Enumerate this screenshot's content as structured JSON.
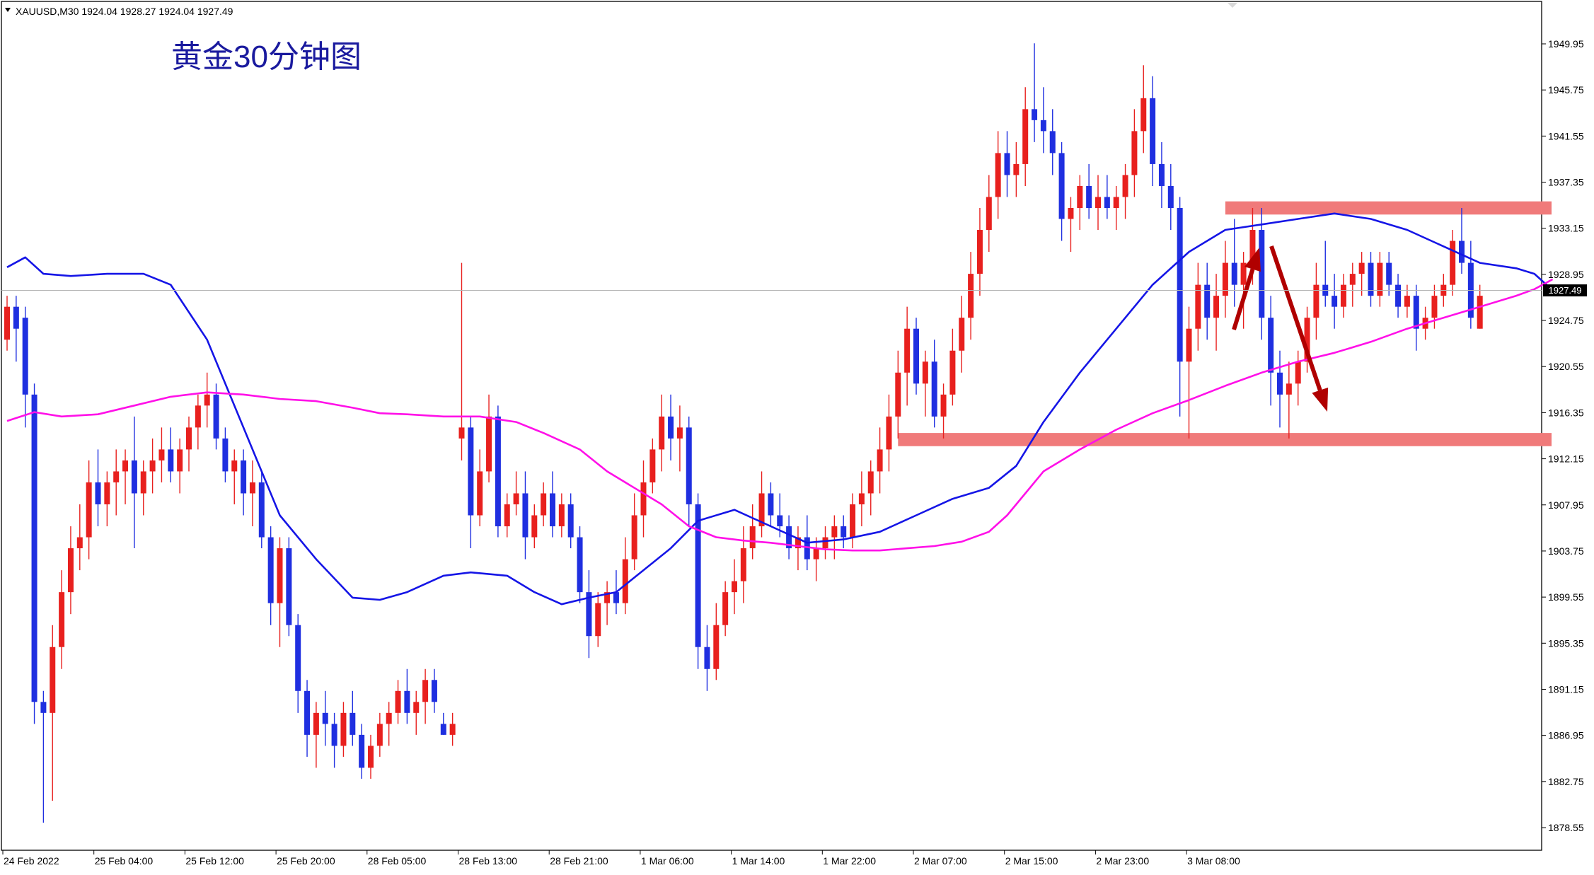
{
  "window": {
    "symbol_info": "XAUUSD,M30  1924.04 1928.27 1924.04 1927.49",
    "title": "黄金30分钟图",
    "current_price_label": "1927.49"
  },
  "colors": {
    "bull": "#e8201e",
    "bear": "#1f2fe0",
    "ma_fast": "#1515e6",
    "ma_slow": "#ff10e8",
    "zone": "#f07a7a",
    "arrow": "#b00000",
    "axis_text": "#000000"
  },
  "icons": {
    "dropdown": "triangle-down-icon"
  },
  "chart_data": {
    "type": "candlestick",
    "title": "黄金30分钟图",
    "ylim": [
      1876.8,
      1951.9
    ],
    "yticks": [
      1949.95,
      1945.75,
      1941.55,
      1937.35,
      1933.15,
      1928.95,
      1924.75,
      1920.55,
      1916.35,
      1912.15,
      1907.95,
      1903.75,
      1899.55,
      1895.35,
      1891.15,
      1886.95,
      1882.75,
      1878.55
    ],
    "xticks": [
      "24 Feb 2022",
      "25 Feb 04:00",
      "25 Feb 12:00",
      "25 Feb 20:00",
      "28 Feb 05:00",
      "28 Feb 13:00",
      "28 Feb 21:00",
      "1 Mar 06:00",
      "1 Mar 14:00",
      "1 Mar 22:00",
      "2 Mar 07:00",
      "2 Mar 15:00",
      "2 Mar 23:00",
      "3 Mar 08:00"
    ],
    "last_price": 1927.49,
    "zones": [
      {
        "name": "resistance",
        "from": 1934.4,
        "to": 1935.6,
        "start_index": 134
      },
      {
        "name": "support",
        "from": 1913.3,
        "to": 1914.5,
        "start_index": 98
      }
    ],
    "series": [
      {
        "name": "MA fast",
        "points": [
          [
            0,
            1929.6
          ],
          [
            2,
            1930.5
          ],
          [
            4,
            1929.0
          ],
          [
            7,
            1928.8
          ],
          [
            11,
            1929.0
          ],
          [
            15,
            1929.0
          ],
          [
            18,
            1928.0
          ],
          [
            22,
            1923.0
          ],
          [
            26,
            1915.0
          ],
          [
            30,
            1907.0
          ],
          [
            34,
            1903.0
          ],
          [
            38,
            1899.5
          ],
          [
            41,
            1899.3
          ],
          [
            44,
            1900.0
          ],
          [
            48,
            1901.5
          ],
          [
            51,
            1901.8
          ],
          [
            55,
            1901.5
          ],
          [
            58,
            1900.0
          ],
          [
            61,
            1898.9
          ],
          [
            64,
            1899.5
          ],
          [
            67,
            1900.0
          ],
          [
            70,
            1902.0
          ],
          [
            73,
            1904.0
          ],
          [
            76,
            1906.5
          ],
          [
            80,
            1907.5
          ],
          [
            84,
            1906.0
          ],
          [
            88,
            1904.5
          ],
          [
            92,
            1904.8
          ],
          [
            96,
            1905.5
          ],
          [
            100,
            1907.0
          ],
          [
            104,
            1908.5
          ],
          [
            108,
            1909.5
          ],
          [
            111,
            1911.5
          ],
          [
            114,
            1915.5
          ],
          [
            118,
            1920.0
          ],
          [
            122,
            1924.0
          ],
          [
            126,
            1928.0
          ],
          [
            130,
            1931.0
          ],
          [
            134,
            1933.0
          ],
          [
            138,
            1933.5
          ],
          [
            142,
            1934.0
          ],
          [
            146,
            1934.5
          ],
          [
            150,
            1934.0
          ],
          [
            154,
            1933.0
          ],
          [
            158,
            1931.5
          ],
          [
            162,
            1930.0
          ],
          [
            166,
            1929.5
          ],
          [
            168,
            1929.0
          ],
          [
            170,
            1927.5
          ]
        ]
      },
      {
        "name": "MA slow",
        "points": [
          [
            0,
            1915.6
          ],
          [
            3,
            1916.4
          ],
          [
            6,
            1916.0
          ],
          [
            10,
            1916.2
          ],
          [
            14,
            1917.0
          ],
          [
            18,
            1917.8
          ],
          [
            22,
            1918.2
          ],
          [
            26,
            1918.0
          ],
          [
            30,
            1917.6
          ],
          [
            34,
            1917.4
          ],
          [
            38,
            1916.8
          ],
          [
            41,
            1916.3
          ],
          [
            44,
            1916.2
          ],
          [
            48,
            1916.0
          ],
          [
            52,
            1916.0
          ],
          [
            56,
            1915.5
          ],
          [
            59,
            1914.5
          ],
          [
            63,
            1913.0
          ],
          [
            66,
            1911.0
          ],
          [
            69,
            1909.5
          ],
          [
            72,
            1908.0
          ],
          [
            75,
            1906.0
          ],
          [
            78,
            1905.0
          ],
          [
            81,
            1904.7
          ],
          [
            84,
            1904.5
          ],
          [
            87,
            1904.2
          ],
          [
            90,
            1903.9
          ],
          [
            93,
            1903.8
          ],
          [
            96,
            1903.8
          ],
          [
            99,
            1904.0
          ],
          [
            102,
            1904.2
          ],
          [
            105,
            1904.6
          ],
          [
            108,
            1905.5
          ],
          [
            110,
            1907.0
          ],
          [
            112,
            1909.0
          ],
          [
            114,
            1911.0
          ],
          [
            118,
            1913.0
          ],
          [
            122,
            1914.8
          ],
          [
            126,
            1916.3
          ],
          [
            130,
            1917.5
          ],
          [
            134,
            1918.8
          ],
          [
            138,
            1920.0
          ],
          [
            142,
            1921.0
          ],
          [
            146,
            1921.8
          ],
          [
            150,
            1922.8
          ],
          [
            154,
            1924.0
          ],
          [
            158,
            1925.0
          ],
          [
            162,
            1926.0
          ],
          [
            166,
            1927.0
          ],
          [
            168,
            1927.6
          ],
          [
            170,
            1928.5
          ]
        ]
      }
    ],
    "candles": [
      [
        1923,
        1927,
        1922,
        1926
      ],
      [
        1926,
        1927,
        1921,
        1924
      ],
      [
        1925,
        1926,
        1915,
        1918
      ],
      [
        1918,
        1919,
        1888,
        1890
      ],
      [
        1890,
        1891,
        1879,
        1889
      ],
      [
        1889,
        1897,
        1881,
        1895
      ],
      [
        1895,
        1902,
        1893,
        1900
      ],
      [
        1900,
        1906,
        1898,
        1904
      ],
      [
        1904,
        1908,
        1902,
        1905
      ],
      [
        1905,
        1912,
        1903,
        1910
      ],
      [
        1910,
        1913,
        1906,
        1908
      ],
      [
        1908,
        1911,
        1906,
        1910
      ],
      [
        1910,
        1913,
        1907,
        1911
      ],
      [
        1911,
        1913,
        1908,
        1912
      ],
      [
        1912,
        1916,
        1904,
        1909
      ],
      [
        1909,
        1912,
        1907,
        1911
      ],
      [
        1911,
        1914,
        1909,
        1912
      ],
      [
        1912,
        1915,
        1910,
        1913
      ],
      [
        1913,
        1915,
        1910,
        1911
      ],
      [
        1911,
        1914,
        1909,
        1913
      ],
      [
        1913,
        1916,
        1911,
        1915
      ],
      [
        1915,
        1918,
        1913,
        1917
      ],
      [
        1917,
        1920,
        1915,
        1918
      ],
      [
        1918,
        1919,
        1913,
        1914
      ],
      [
        1914,
        1915,
        1910,
        1911
      ],
      [
        1911,
        1913,
        1908,
        1912
      ],
      [
        1912,
        1913,
        1907,
        1909
      ],
      [
        1909,
        1912,
        1906,
        1910
      ],
      [
        1910,
        1911,
        1904,
        1905
      ],
      [
        1905,
        1906,
        1897,
        1899
      ],
      [
        1899,
        1905,
        1895,
        1904
      ],
      [
        1904,
        1905,
        1896,
        1897
      ],
      [
        1897,
        1898,
        1889,
        1891
      ],
      [
        1891,
        1892,
        1885,
        1887
      ],
      [
        1887,
        1890,
        1884,
        1889
      ],
      [
        1889,
        1891,
        1886,
        1888
      ],
      [
        1888,
        1889,
        1884,
        1886
      ],
      [
        1886,
        1890,
        1885,
        1889
      ],
      [
        1889,
        1891,
        1886,
        1887
      ],
      [
        1887,
        1888,
        1883,
        1884
      ],
      [
        1884,
        1887,
        1883,
        1886
      ],
      [
        1886,
        1889,
        1885,
        1888
      ],
      [
        1888,
        1890,
        1886,
        1889
      ],
      [
        1889,
        1892,
        1888,
        1891
      ],
      [
        1891,
        1893,
        1888,
        1889
      ],
      [
        1889,
        1891,
        1887,
        1890
      ],
      [
        1890,
        1893,
        1888,
        1892
      ],
      [
        1892,
        1893,
        1889,
        1890
      ],
      [
        1888,
        1889,
        1887,
        1887
      ],
      [
        1887,
        1889,
        1886,
        1888
      ],
      [
        1914,
        1930,
        1912,
        1915
      ],
      [
        1915,
        1916,
        1904,
        1907
      ],
      [
        1907,
        1913,
        1906,
        1911
      ],
      [
        1911,
        1918,
        1910,
        1916
      ],
      [
        1916,
        1917,
        1905,
        1906
      ],
      [
        1906,
        1909,
        1905,
        1908
      ],
      [
        1908,
        1911,
        1907,
        1909
      ],
      [
        1909,
        1911,
        1903,
        1905
      ],
      [
        1905,
        1908,
        1904,
        1907
      ],
      [
        1907,
        1910,
        1906,
        1909
      ],
      [
        1909,
        1911,
        1905,
        1906
      ],
      [
        1906,
        1909,
        1905,
        1908
      ],
      [
        1908,
        1909,
        1904,
        1905
      ],
      [
        1905,
        1906,
        1899,
        1900
      ],
      [
        1900,
        1902,
        1894,
        1896
      ],
      [
        1896,
        1900,
        1895,
        1899
      ],
      [
        1899,
        1901,
        1897,
        1900
      ],
      [
        1900,
        1902,
        1898,
        1899
      ],
      [
        1899,
        1905,
        1898,
        1903
      ],
      [
        1903,
        1909,
        1902,
        1907
      ],
      [
        1907,
        1912,
        1905,
        1910
      ],
      [
        1910,
        1914,
        1909,
        1913
      ],
      [
        1913,
        1918,
        1911,
        1916
      ],
      [
        1916,
        1918,
        1912,
        1914
      ],
      [
        1914,
        1917,
        1911,
        1915
      ],
      [
        1915,
        1916,
        1906,
        1908
      ],
      [
        1908,
        1909,
        1893,
        1895
      ],
      [
        1895,
        1897,
        1891,
        1893
      ],
      [
        1893,
        1899,
        1892,
        1897
      ],
      [
        1897,
        1901,
        1896,
        1900
      ],
      [
        1900,
        1903,
        1898,
        1901
      ],
      [
        1901,
        1906,
        1899,
        1904
      ],
      [
        1904,
        1908,
        1903,
        1906
      ],
      [
        1906,
        1911,
        1905,
        1909
      ],
      [
        1909,
        1910,
        1906,
        1907
      ],
      [
        1907,
        1909,
        1905,
        1906
      ],
      [
        1906,
        1907,
        1903,
        1904
      ],
      [
        1904,
        1906,
        1902,
        1905
      ],
      [
        1905,
        1907,
        1902,
        1903
      ],
      [
        1903,
        1905,
        1901,
        1904
      ],
      [
        1904,
        1906,
        1903,
        1905
      ],
      [
        1905,
        1907,
        1903,
        1906
      ],
      [
        1906,
        1907,
        1904,
        1905
      ],
      [
        1905,
        1909,
        1904,
        1908
      ],
      [
        1908,
        1911,
        1906,
        1909
      ],
      [
        1909,
        1912,
        1907,
        1911
      ],
      [
        1911,
        1915,
        1909,
        1913
      ],
      [
        1913,
        1918,
        1911,
        1916
      ],
      [
        1916,
        1922,
        1914,
        1920
      ],
      [
        1920,
        1926,
        1917,
        1924
      ],
      [
        1924,
        1925,
        1918,
        1919
      ],
      [
        1919,
        1922,
        1916,
        1921
      ],
      [
        1921,
        1923,
        1915,
        1916
      ],
      [
        1916,
        1919,
        1914,
        1918
      ],
      [
        1918,
        1924,
        1917,
        1922
      ],
      [
        1922,
        1927,
        1920,
        1925
      ],
      [
        1925,
        1931,
        1923,
        1929
      ],
      [
        1929,
        1935,
        1927,
        1933
      ],
      [
        1933,
        1938,
        1931,
        1936
      ],
      [
        1936,
        1942,
        1934,
        1940
      ],
      [
        1940,
        1942,
        1936,
        1938
      ],
      [
        1938,
        1941,
        1936,
        1939
      ],
      [
        1939,
        1946,
        1937,
        1944
      ],
      [
        1944,
        1950,
        1941,
        1943
      ],
      [
        1943,
        1946,
        1940,
        1942
      ],
      [
        1942,
        1944,
        1938,
        1940
      ],
      [
        1940,
        1941,
        1932,
        1934
      ],
      [
        1934,
        1936,
        1931,
        1935
      ],
      [
        1935,
        1938,
        1933,
        1937
      ],
      [
        1937,
        1939,
        1934,
        1935
      ],
      [
        1935,
        1938,
        1933,
        1936
      ],
      [
        1936,
        1938,
        1934,
        1935
      ],
      [
        1935,
        1937,
        1933,
        1936
      ],
      [
        1936,
        1939,
        1934,
        1938
      ],
      [
        1938,
        1944,
        1936,
        1942
      ],
      [
        1942,
        1948,
        1940,
        1945
      ],
      [
        1945,
        1947,
        1937,
        1939
      ],
      [
        1939,
        1941,
        1935,
        1937
      ],
      [
        1937,
        1939,
        1933,
        1935
      ],
      [
        1935,
        1936,
        1916,
        1921
      ],
      [
        1921,
        1926,
        1914,
        1924
      ],
      [
        1924,
        1930,
        1922,
        1928
      ],
      [
        1928,
        1930,
        1923,
        1925
      ],
      [
        1925,
        1929,
        1922,
        1927
      ],
      [
        1927,
        1932,
        1925,
        1930
      ],
      [
        1930,
        1934,
        1926,
        1928
      ],
      [
        1928,
        1931,
        1924,
        1930
      ],
      [
        1930,
        1935,
        1928,
        1933
      ],
      [
        1933,
        1935,
        1923,
        1925
      ],
      [
        1925,
        1927,
        1917,
        1920
      ],
      [
        1920,
        1922,
        1915,
        1918
      ],
      [
        1918,
        1921,
        1914,
        1919
      ],
      [
        1919,
        1922,
        1917,
        1921
      ],
      [
        1921,
        1926,
        1920,
        1925
      ],
      [
        1925,
        1930,
        1923,
        1928
      ],
      [
        1928,
        1932,
        1926,
        1927
      ],
      [
        1927,
        1929,
        1924,
        1926
      ],
      [
        1926,
        1929,
        1925,
        1928
      ],
      [
        1928,
        1930,
        1926,
        1929
      ],
      [
        1929,
        1931,
        1927,
        1930
      ],
      [
        1930,
        1931,
        1926,
        1927
      ],
      [
        1927,
        1931,
        1926,
        1930
      ],
      [
        1930,
        1931,
        1927,
        1928
      ],
      [
        1928,
        1929,
        1925,
        1926
      ],
      [
        1926,
        1928,
        1925,
        1927
      ],
      [
        1927,
        1928,
        1922,
        1924
      ],
      [
        1924,
        1926,
        1923,
        1925
      ],
      [
        1925,
        1928,
        1924,
        1927
      ],
      [
        1927,
        1929,
        1926,
        1928
      ],
      [
        1928,
        1933,
        1927,
        1932
      ],
      [
        1932,
        1935,
        1929,
        1930
      ],
      [
        1930,
        1932,
        1924,
        1925
      ],
      [
        1924,
        1928,
        1924,
        1927
      ]
    ]
  }
}
